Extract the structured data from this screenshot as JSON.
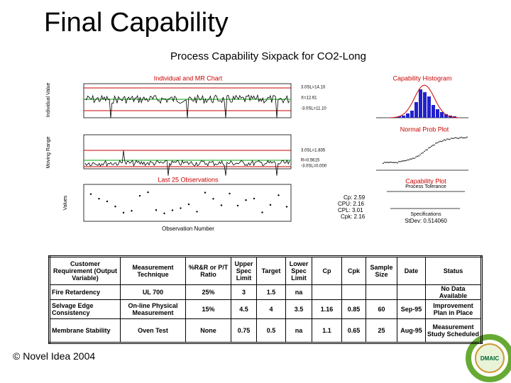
{
  "title": "Final Capability",
  "sixpack": {
    "title": "Process Capability Sixpack for CO2-Long",
    "panels": {
      "individual": "Individual and MR Chart",
      "histogram": "Capability Histogram",
      "normal": "Normal Prob Plot",
      "last25": "Last 25 Observations",
      "capability": "Capability Plot"
    },
    "axes": {
      "individual_y": "Individual Value",
      "mr_y": "Moving Range",
      "last25_y": "Values",
      "x": "Observation Number"
    },
    "individual_lines": [
      "3.0SL=14.10",
      "X=12.61",
      "-3.0SL=11.10"
    ],
    "mr_lines": [
      "3.0SL=1.835",
      "R=0.5615",
      "-3.0SL=0.000"
    ],
    "stats": [
      "Cp: 2.59",
      "CPU: 2.16",
      "CPL: 3.01",
      "Cpk: 2.16"
    ],
    "tolerance": "Process Tolerance",
    "specifications": "Specifications",
    "stdev": "StDev: 0.514060"
  },
  "table": {
    "headers": [
      "Customer Requirement (Output Variable)",
      "Measurement Technique",
      "%R&R or P/T Ratio",
      "Upper Spec Limit",
      "Target",
      "Lower Spec Limit",
      "Cp",
      "Cpk",
      "Sample Size",
      "Date",
      "Status"
    ],
    "rows": [
      [
        "Fire Retardency",
        "UL 700",
        "25%",
        "3",
        "1.5",
        "na",
        null,
        null,
        null,
        null,
        "No Data Available"
      ],
      [
        "Selvage Edge Consistency",
        "On-line Physical Measurement",
        "15%",
        "4.5",
        "4",
        "3.5",
        "1.16",
        "0.85",
        "60",
        "Sep-95",
        "Improvement Plan in Place"
      ],
      [
        "Membrane Stability",
        "Oven Test",
        "None",
        "0.75",
        "0.5",
        "na",
        "1.1",
        "0.65",
        "25",
        "Aug-95",
        "Measurement Study Scheduled"
      ]
    ]
  },
  "footer": "© Novel Idea 2004",
  "logo": "DMAIC"
}
